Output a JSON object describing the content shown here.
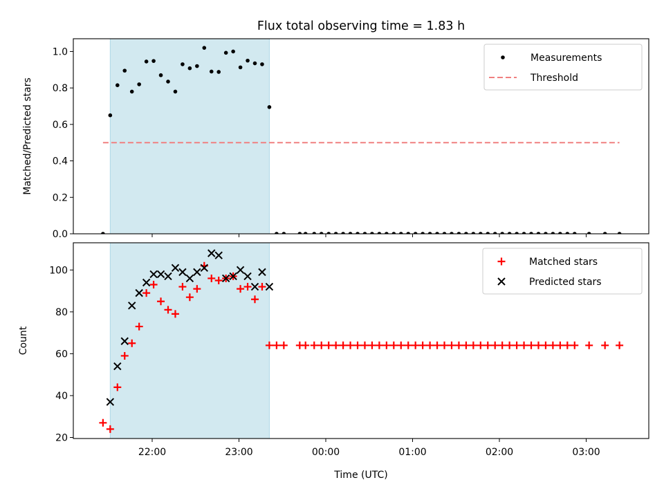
{
  "chart_data": {
    "type": "scatter",
    "title": "Flux total observing time = 1.83 h",
    "xlabel": "Time (UTC)",
    "x_ticks": [
      "22:00",
      "23:00",
      "00:00",
      "01:00",
      "02:00",
      "03:00"
    ],
    "shaded_interval": {
      "start": "21:31",
      "end": "23:21",
      "color": "#d2e9f0"
    },
    "panels": [
      {
        "ylabel": "Matched/Predicted stars",
        "ylim": [
          0.0,
          1.07
        ],
        "y_ticks": [
          "0.0",
          "0.2",
          "0.4",
          "0.6",
          "0.8",
          "1.0"
        ],
        "legend_position": "top-right",
        "series": [
          {
            "name": "Measurements",
            "marker": "dot",
            "color": "#000000",
            "points": [
              [
                "21:26",
                0.0
              ],
              [
                "21:31",
                0.65
              ],
              [
                "21:36",
                0.815
              ],
              [
                "21:41",
                0.895
              ],
              [
                "21:46",
                0.78
              ],
              [
                "21:51",
                0.82
              ],
              [
                "21:56",
                0.945
              ],
              [
                "22:01",
                0.948
              ],
              [
                "22:06",
                0.87
              ],
              [
                "22:11",
                0.835
              ],
              [
                "22:16",
                0.78
              ],
              [
                "22:21",
                0.93
              ],
              [
                "22:26",
                0.908
              ],
              [
                "22:31",
                0.92
              ],
              [
                "22:36",
                1.02
              ],
              [
                "22:41",
                0.89
              ],
              [
                "22:46",
                0.888
              ],
              [
                "22:51",
                0.993
              ],
              [
                "22:56",
                1.0
              ],
              [
                "23:01",
                0.913
              ],
              [
                "23:06",
                0.95
              ],
              [
                "23:11",
                0.935
              ],
              [
                "23:16",
                0.93
              ],
              [
                "23:21",
                0.695
              ],
              [
                "23:26",
                0.0
              ],
              [
                "23:31",
                0.0
              ],
              [
                "23:42",
                0.0
              ],
              [
                "23:46",
                0.0
              ],
              [
                "23:52",
                0.0
              ],
              [
                "23:57",
                0.0
              ],
              [
                "00:02",
                0.0
              ],
              [
                "00:07",
                0.0
              ],
              [
                "00:12",
                0.0
              ],
              [
                "00:17",
                0.0
              ],
              [
                "00:22",
                0.0
              ],
              [
                "00:27",
                0.0
              ],
              [
                "00:32",
                0.0
              ],
              [
                "00:37",
                0.0
              ],
              [
                "00:42",
                0.0
              ],
              [
                "00:47",
                0.0
              ],
              [
                "00:52",
                0.0
              ],
              [
                "00:57",
                0.0
              ],
              [
                "01:02",
                0.0
              ],
              [
                "01:07",
                0.0
              ],
              [
                "01:12",
                0.0
              ],
              [
                "01:17",
                0.0
              ],
              [
                "01:22",
                0.0
              ],
              [
                "01:27",
                0.0
              ],
              [
                "01:32",
                0.0
              ],
              [
                "01:37",
                0.0
              ],
              [
                "01:42",
                0.0
              ],
              [
                "01:47",
                0.0
              ],
              [
                "01:52",
                0.0
              ],
              [
                "01:57",
                0.0
              ],
              [
                "02:02",
                0.0
              ],
              [
                "02:07",
                0.0
              ],
              [
                "02:12",
                0.0
              ],
              [
                "02:17",
                0.0
              ],
              [
                "02:22",
                0.0
              ],
              [
                "02:27",
                0.0
              ],
              [
                "02:32",
                0.0
              ],
              [
                "02:37",
                0.0
              ],
              [
                "02:42",
                0.0
              ],
              [
                "02:47",
                0.0
              ],
              [
                "02:52",
                0.0
              ],
              [
                "03:02",
                0.0
              ],
              [
                "03:13",
                0.0
              ],
              [
                "03:23",
                0.0
              ]
            ]
          },
          {
            "name": "Threshold",
            "marker": "dashed-line",
            "color": "#f08080",
            "points": [
              [
                "21:26",
                0.5
              ],
              [
                "03:23",
                0.5
              ]
            ]
          }
        ]
      },
      {
        "ylabel": "Count",
        "ylim": [
          19.5,
          113
        ],
        "y_ticks": [
          "20",
          "40",
          "60",
          "80",
          "100"
        ],
        "legend_position": "top-right",
        "series": [
          {
            "name": "Matched stars",
            "marker": "plus",
            "color": "#ff0000",
            "points": [
              [
                "21:26",
                27
              ],
              [
                "21:31",
                24
              ],
              [
                "21:36",
                44
              ],
              [
                "21:41",
                59
              ],
              [
                "21:46",
                65
              ],
              [
                "21:51",
                73
              ],
              [
                "21:56",
                89
              ],
              [
                "22:01",
                93
              ],
              [
                "22:06",
                85
              ],
              [
                "22:11",
                81
              ],
              [
                "22:16",
                79
              ],
              [
                "22:21",
                92
              ],
              [
                "22:26",
                87
              ],
              [
                "22:31",
                91
              ],
              [
                "22:36",
                102
              ],
              [
                "22:41",
                96
              ],
              [
                "22:46",
                95
              ],
              [
                "22:51",
                96
              ],
              [
                "22:56",
                97
              ],
              [
                "23:01",
                91
              ],
              [
                "23:06",
                92
              ],
              [
                "23:11",
                86
              ],
              [
                "23:16",
                92
              ],
              [
                "23:21",
                64
              ],
              [
                "23:26",
                64
              ],
              [
                "23:31",
                64
              ],
              [
                "23:42",
                64
              ],
              [
                "23:46",
                64
              ],
              [
                "23:52",
                64
              ],
              [
                "23:57",
                64
              ],
              [
                "00:02",
                64
              ],
              [
                "00:07",
                64
              ],
              [
                "00:12",
                64
              ],
              [
                "00:17",
                64
              ],
              [
                "00:22",
                64
              ],
              [
                "00:27",
                64
              ],
              [
                "00:32",
                64
              ],
              [
                "00:37",
                64
              ],
              [
                "00:42",
                64
              ],
              [
                "00:47",
                64
              ],
              [
                "00:52",
                64
              ],
              [
                "00:57",
                64
              ],
              [
                "01:02",
                64
              ],
              [
                "01:07",
                64
              ],
              [
                "01:12",
                64
              ],
              [
                "01:17",
                64
              ],
              [
                "01:22",
                64
              ],
              [
                "01:27",
                64
              ],
              [
                "01:32",
                64
              ],
              [
                "01:37",
                64
              ],
              [
                "01:42",
                64
              ],
              [
                "01:47",
                64
              ],
              [
                "01:52",
                64
              ],
              [
                "01:57",
                64
              ],
              [
                "02:02",
                64
              ],
              [
                "02:07",
                64
              ],
              [
                "02:12",
                64
              ],
              [
                "02:17",
                64
              ],
              [
                "02:22",
                64
              ],
              [
                "02:27",
                64
              ],
              [
                "02:32",
                64
              ],
              [
                "02:37",
                64
              ],
              [
                "02:42",
                64
              ],
              [
                "02:47",
                64
              ],
              [
                "02:52",
                64
              ],
              [
                "03:02",
                64
              ],
              [
                "03:13",
                64
              ],
              [
                "03:23",
                64
              ]
            ]
          },
          {
            "name": "Predicted stars",
            "marker": "x",
            "color": "#000000",
            "points": [
              [
                "21:31",
                37
              ],
              [
                "21:36",
                54
              ],
              [
                "21:41",
                66
              ],
              [
                "21:46",
                83
              ],
              [
                "21:51",
                89
              ],
              [
                "21:56",
                94
              ],
              [
                "22:01",
                98
              ],
              [
                "22:06",
                98
              ],
              [
                "22:11",
                97
              ],
              [
                "22:16",
                101
              ],
              [
                "22:21",
                99
              ],
              [
                "22:26",
                96
              ],
              [
                "22:31",
                99
              ],
              [
                "22:36",
                101
              ],
              [
                "22:41",
                108
              ],
              [
                "22:46",
                107
              ],
              [
                "22:51",
                96
              ],
              [
                "22:56",
                97
              ],
              [
                "23:01",
                100
              ],
              [
                "23:06",
                97
              ],
              [
                "23:11",
                92
              ],
              [
                "23:16",
                99
              ],
              [
                "23:21",
                92
              ]
            ]
          }
        ]
      }
    ]
  }
}
